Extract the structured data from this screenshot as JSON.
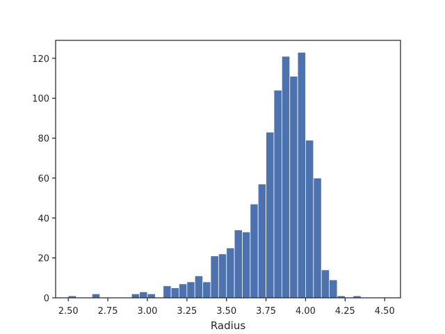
{
  "chart_data": {
    "type": "bar",
    "title": "",
    "xlabel": "Radius",
    "ylabel": "",
    "xlim": [
      2.42,
      4.6
    ],
    "ylim": [
      0,
      129
    ],
    "grid": false,
    "bar_color": "#4c72b0",
    "bin_start": 2.5,
    "bin_width": 0.05,
    "values": [
      1,
      0,
      0,
      2,
      0,
      0,
      0,
      0,
      2,
      3,
      2,
      0,
      6,
      5,
      7,
      8,
      11,
      8,
      21,
      22,
      25,
      34,
      33,
      47,
      57,
      83,
      104,
      121,
      111,
      123,
      79,
      60,
      14,
      9,
      1,
      0,
      1
    ],
    "xticks": [
      2.5,
      2.75,
      3.0,
      3.25,
      3.5,
      3.75,
      4.0,
      4.25,
      4.5
    ],
    "xtick_labels": [
      "2.50",
      "2.75",
      "3.00",
      "3.25",
      "3.50",
      "3.75",
      "4.00",
      "4.25",
      "4.50"
    ],
    "yticks": [
      0,
      20,
      40,
      60,
      80,
      100,
      120
    ],
    "ytick_labels": [
      "0",
      "20",
      "40",
      "60",
      "80",
      "100",
      "120"
    ]
  }
}
